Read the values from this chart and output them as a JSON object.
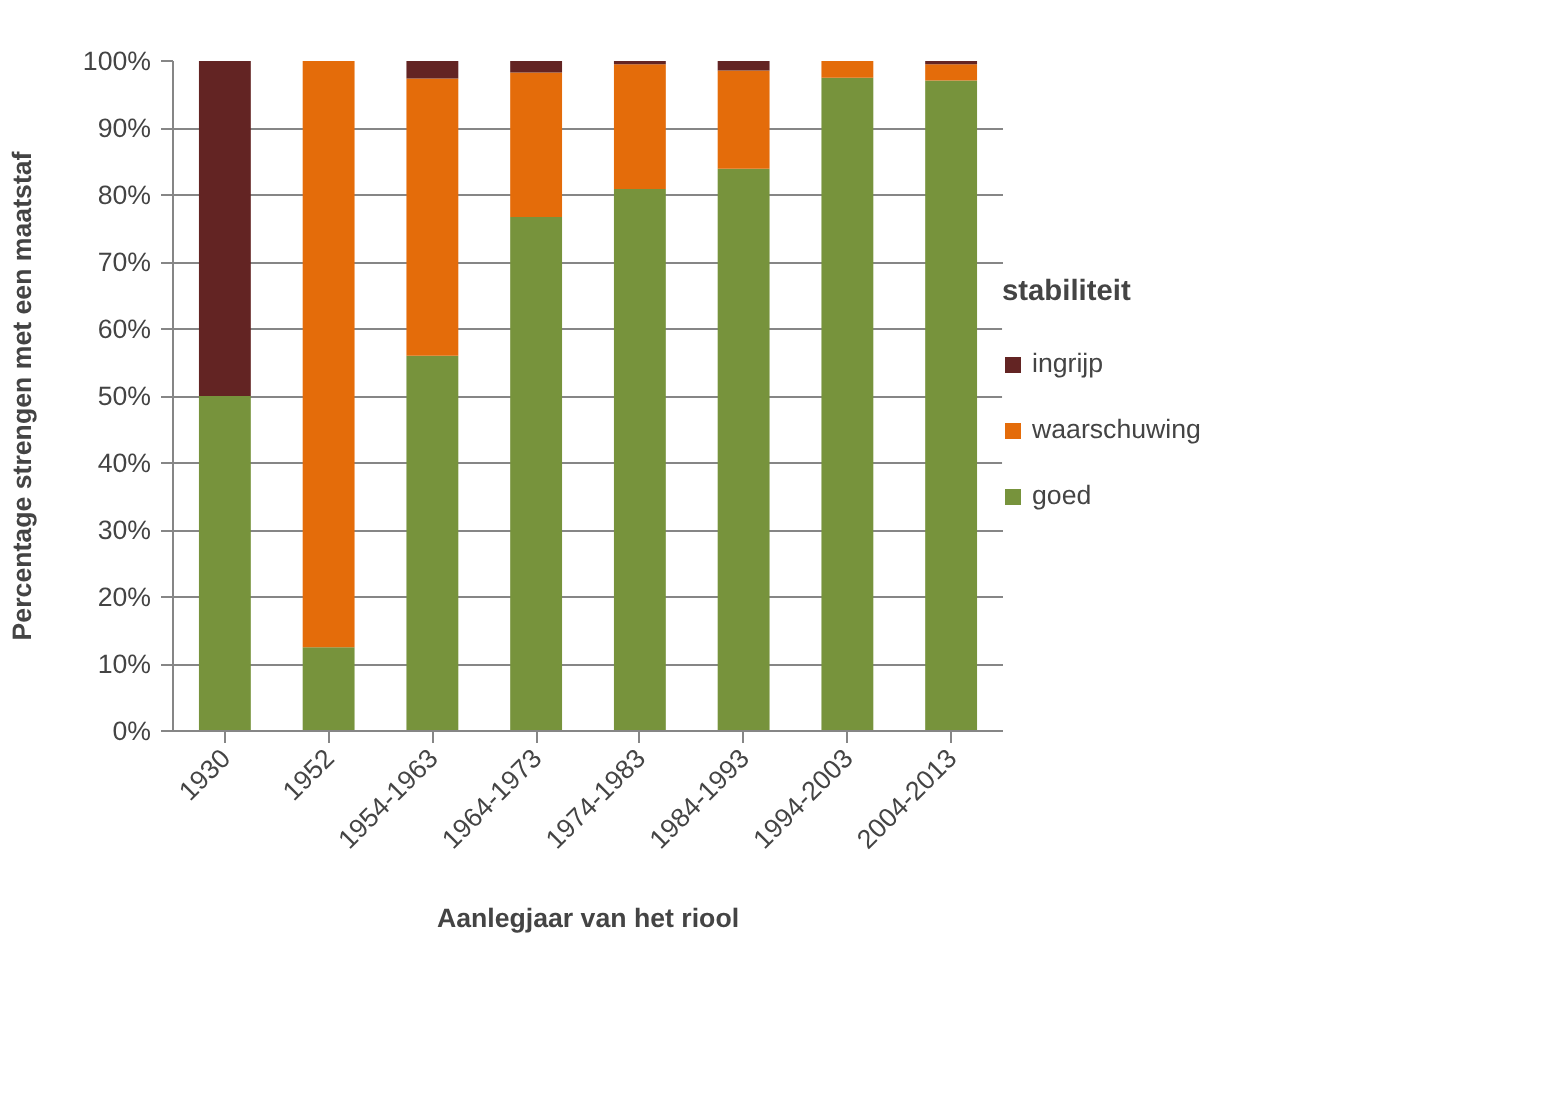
{
  "chart_data": {
    "type": "bar",
    "stacked": true,
    "xlabel": "Aanlegjaar van het riool",
    "ylabel": "Percentage strengen met een maatstaf",
    "legend_title": "stabiliteit",
    "categories": [
      "1930",
      "1952",
      "1954-1963",
      "1964-1973",
      "1974-1983",
      "1984-1993",
      "1994-2003",
      "2004-2013"
    ],
    "series": [
      {
        "name": "goed",
        "color": "#77933c",
        "values": [
          50,
          12.5,
          56,
          76.7,
          80.9,
          83.9,
          97.5,
          97.1
        ]
      },
      {
        "name": "waarschuwing",
        "color": "#e46c0a",
        "values": [
          0,
          87.5,
          41.4,
          21.6,
          18.6,
          14.7,
          2.5,
          2.4
        ]
      },
      {
        "name": "ingrijp",
        "color": "#632423",
        "values": [
          50,
          0,
          2.6,
          1.7,
          0.5,
          1.4,
          0,
          0.5
        ]
      }
    ],
    "ylim": [
      0,
      100
    ],
    "yticks": [
      {
        "value": 0,
        "label": "0%"
      },
      {
        "value": 10,
        "label": "10%"
      },
      {
        "value": 20,
        "label": "20%"
      },
      {
        "value": 30,
        "label": "30%"
      },
      {
        "value": 40,
        "label": "40%"
      },
      {
        "value": 50,
        "label": "50%"
      },
      {
        "value": 60,
        "label": "60%"
      },
      {
        "value": 70,
        "label": "70%"
      },
      {
        "value": 80,
        "label": "80%"
      },
      {
        "value": 90,
        "label": "90%"
      },
      {
        "value": 100,
        "label": "100%"
      }
    ],
    "grid": "y",
    "legend": "right"
  }
}
